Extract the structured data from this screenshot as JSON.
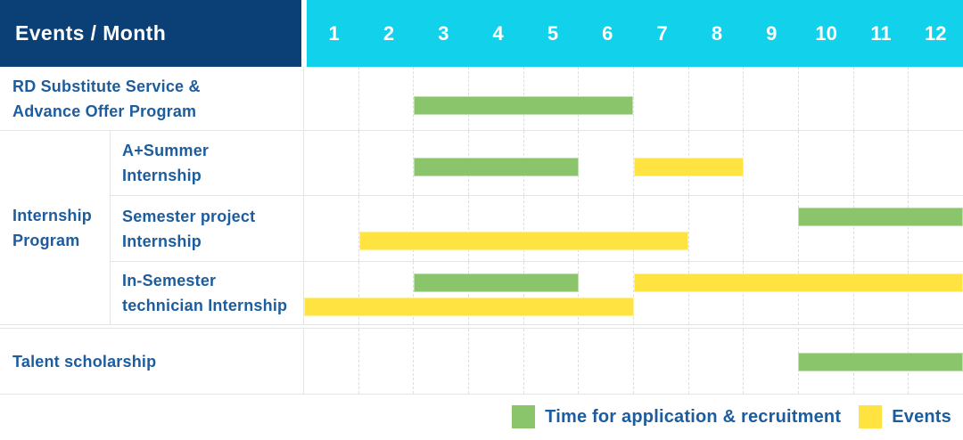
{
  "header": {
    "title": "Events / Month"
  },
  "months": [
    "1",
    "2",
    "3",
    "4",
    "5",
    "6",
    "7",
    "8",
    "9",
    "10",
    "11",
    "12"
  ],
  "colors": {
    "header_navy": "#0b4077",
    "header_cyan": "#12d1ea",
    "green": "#8ac46b",
    "yellow": "#ffe340",
    "label_blue": "#1d5c9d",
    "grid_line": "#e4e4e4"
  },
  "legend": {
    "items": [
      {
        "series": "application"
      },
      {
        "series": "events"
      }
    ]
  },
  "chart_data": {
    "type": "bar",
    "subtype": "gantt",
    "x_axis": {
      "label": "Month",
      "ticks": [
        1,
        2,
        3,
        4,
        5,
        6,
        7,
        8,
        9,
        10,
        11,
        12
      ],
      "range": [
        1,
        12
      ]
    },
    "series": {
      "application": {
        "label": "Time for application & recruitment",
        "color": "green"
      },
      "events": {
        "label": "Events",
        "color": "yellow"
      }
    },
    "group_label": "Internship Program",
    "group_label_lines": [
      "Internship",
      "Program"
    ],
    "rows": [
      {
        "label": "RD Substitute Service & Advance Offer Program",
        "label_lines": [
          "RD Substitute Service &",
          "Advance Offer Program"
        ],
        "group": null,
        "bars": [
          {
            "series": "application",
            "start_month": 3,
            "end_month": 6,
            "track": 0
          }
        ]
      },
      {
        "label": "A+Summer Internship",
        "label_lines": [
          "A+Summer",
          "Internship"
        ],
        "group": "Internship Program",
        "bars": [
          {
            "series": "application",
            "start_month": 3,
            "end_month": 5,
            "track": 0
          },
          {
            "series": "events",
            "start_month": 7,
            "end_month": 8,
            "track": 0
          }
        ]
      },
      {
        "label": "Semester project Internship",
        "label_lines": [
          "Semester project",
          "Internship"
        ],
        "group": "Internship Program",
        "bars": [
          {
            "series": "application",
            "start_month": 10,
            "end_month": 12,
            "track": 0
          },
          {
            "series": "events",
            "start_month": 2,
            "end_month": 7,
            "track": 1
          }
        ]
      },
      {
        "label": "In-Semester technician Internship",
        "label_lines": [
          "In-Semester",
          "technician Internship"
        ],
        "group": "Internship Program",
        "bars": [
          {
            "series": "application",
            "start_month": 3,
            "end_month": 5,
            "track": 0
          },
          {
            "series": "events",
            "start_month": 7,
            "end_month": 12,
            "track": 0
          },
          {
            "series": "events",
            "start_month": 1,
            "end_month": 6,
            "track": 1
          }
        ]
      },
      {
        "label": "Talent scholarship",
        "label_lines": [
          "Talent scholarship"
        ],
        "group": null,
        "bars": [
          {
            "series": "application",
            "start_month": 10,
            "end_month": 12,
            "track": 0
          }
        ]
      }
    ]
  }
}
